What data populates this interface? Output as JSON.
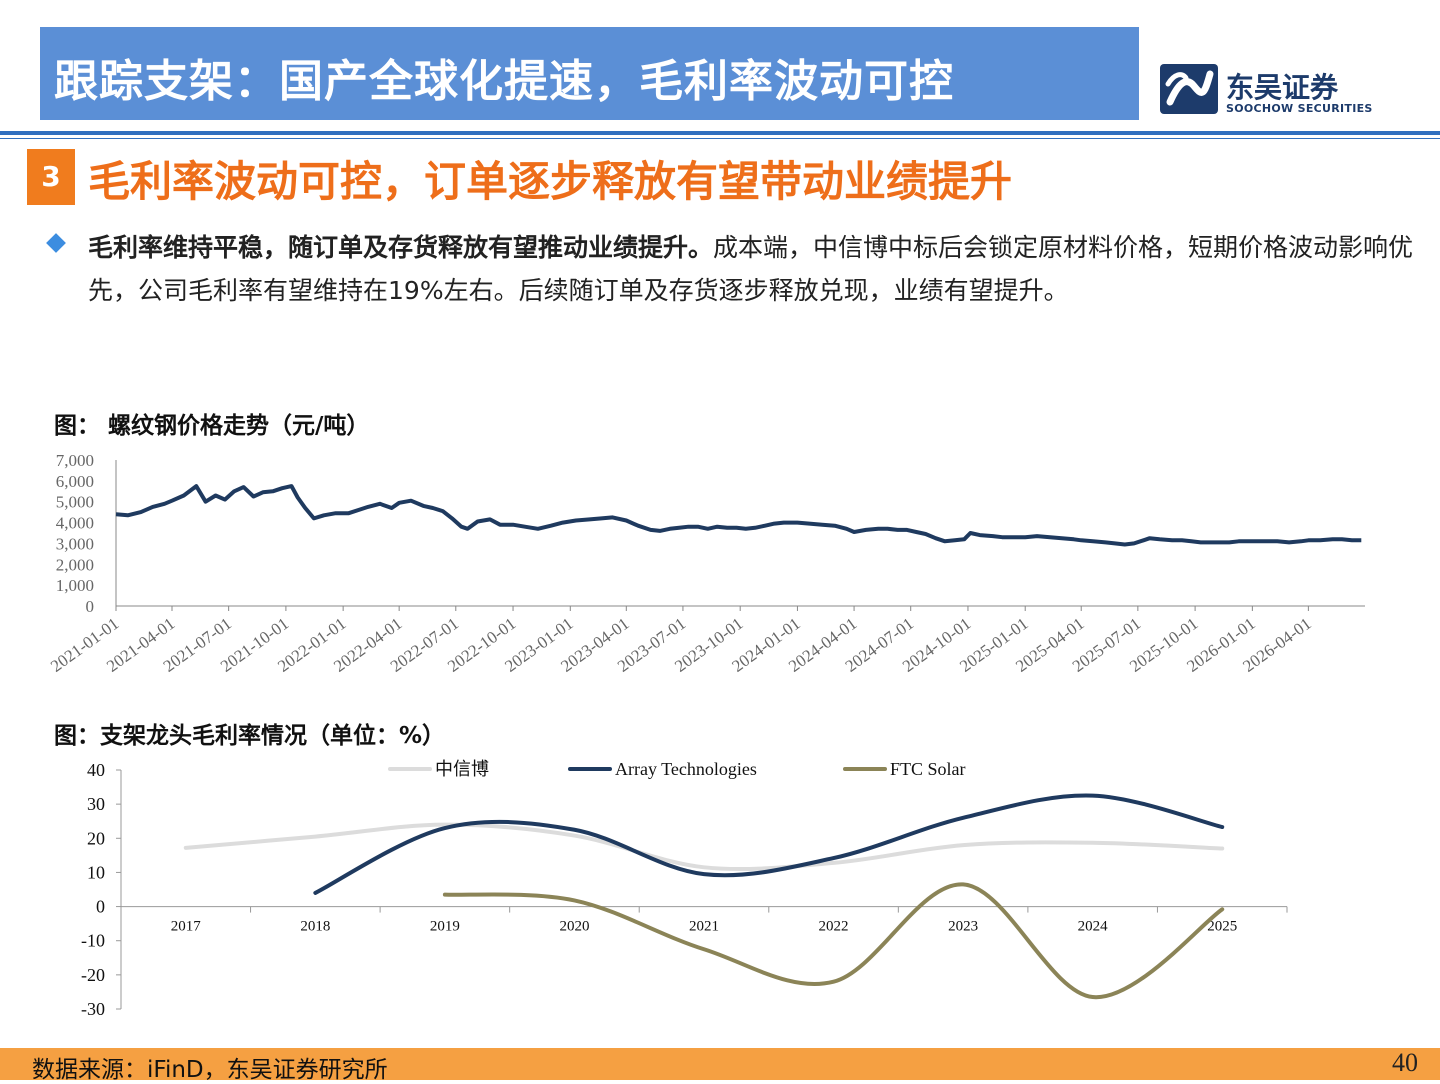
{
  "header": {
    "title": "跟踪支架：国产全球化提速，毛利率波动可控"
  },
  "logo": {
    "name_cn": "东吴证券",
    "name_en": "SOOCHOW SECURITIES"
  },
  "section": {
    "number": "3",
    "title": "毛利率波动可控，订单逐步释放有望带动业绩提升"
  },
  "paragraph": {
    "bold": "毛利率维持平稳，随订单及存货释放有望推动业绩提升。",
    "text": "成本端，中信博中标后会锁定原材料价格，短期价格波动影响优先，公司毛利率有望维持在19%左右。后续随订单及存货逐步释放兑现，业绩有望提升。"
  },
  "footer": {
    "source": "数据来源：iFinD，东吴证券研究所",
    "page": "40"
  },
  "colors": {
    "header_bg": "#5b8fd6",
    "accent_orange": "#ee6e1a",
    "navy": "#1f3a5f",
    "olive": "#8b8457",
    "light_gray": "#dcdcdc"
  },
  "chart_data": [
    {
      "type": "line",
      "title": "图：  螺纹钢价格走势（元/吨）",
      "ylim": [
        0,
        7000
      ],
      "yticks": [
        "0",
        "1,000",
        "2,000",
        "3,000",
        "4,000",
        "5,000",
        "6,000",
        "7,000"
      ],
      "xticks": [
        "2021-01-01",
        "2021-04-01",
        "2021-07-01",
        "2021-10-01",
        "2022-01-01",
        "2022-04-01",
        "2022-07-01",
        "2022-10-01",
        "2023-01-01",
        "2023-04-01",
        "2023-07-01",
        "2023-10-01",
        "2024-01-01",
        "2024-04-01",
        "2024-07-01",
        "2024-10-01",
        "2025-01-01",
        "2025-04-01",
        "2025-07-01",
        "2025-10-01",
        "2026-01-01",
        "2026-04-01"
      ],
      "series": [
        {
          "color": "#1f3a5f",
          "points": [
            [
              "2021-01-01",
              4400
            ],
            [
              "2021-01-20",
              4350
            ],
            [
              "2021-02-10",
              4500
            ],
            [
              "2021-03-01",
              4750
            ],
            [
              "2021-03-20",
              4900
            ],
            [
              "2021-04-01",
              5050
            ],
            [
              "2021-04-20",
              5300
            ],
            [
              "2021-05-10",
              5750
            ],
            [
              "2021-05-25",
              5000
            ],
            [
              "2021-06-10",
              5300
            ],
            [
              "2021-06-25",
              5100
            ],
            [
              "2021-07-10",
              5500
            ],
            [
              "2021-07-25",
              5700
            ],
            [
              "2021-08-10",
              5250
            ],
            [
              "2021-08-25",
              5450
            ],
            [
              "2021-09-10",
              5500
            ],
            [
              "2021-09-25",
              5650
            ],
            [
              "2021-10-10",
              5750
            ],
            [
              "2021-10-20",
              5200
            ],
            [
              "2021-11-01",
              4700
            ],
            [
              "2021-11-15",
              4200
            ],
            [
              "2021-12-01",
              4350
            ],
            [
              "2021-12-20",
              4450
            ],
            [
              "2022-01-10",
              4450
            ],
            [
              "2022-01-25",
              4600
            ],
            [
              "2022-02-10",
              4750
            ],
            [
              "2022-03-01",
              4900
            ],
            [
              "2022-03-20",
              4700
            ],
            [
              "2022-04-01",
              4950
            ],
            [
              "2022-04-20",
              5050
            ],
            [
              "2022-05-10",
              4800
            ],
            [
              "2022-05-25",
              4700
            ],
            [
              "2022-06-10",
              4550
            ],
            [
              "2022-06-25",
              4200
            ],
            [
              "2022-07-10",
              3800
            ],
            [
              "2022-07-20",
              3700
            ],
            [
              "2022-08-05",
              4050
            ],
            [
              "2022-08-25",
              4150
            ],
            [
              "2022-09-10",
              3900
            ],
            [
              "2022-10-01",
              3900
            ],
            [
              "2022-10-20",
              3800
            ],
            [
              "2022-11-10",
              3700
            ],
            [
              "2022-12-01",
              3850
            ],
            [
              "2022-12-20",
              4000
            ],
            [
              "2023-01-10",
              4100
            ],
            [
              "2023-02-01",
              4150
            ],
            [
              "2023-02-20",
              4200
            ],
            [
              "2023-03-10",
              4250
            ],
            [
              "2023-04-01",
              4100
            ],
            [
              "2023-04-20",
              3850
            ],
            [
              "2023-05-10",
              3650
            ],
            [
              "2023-05-25",
              3600
            ],
            [
              "2023-06-10",
              3700
            ],
            [
              "2023-06-25",
              3750
            ],
            [
              "2023-07-10",
              3800
            ],
            [
              "2023-07-25",
              3800
            ],
            [
              "2023-08-10",
              3700
            ],
            [
              "2023-08-25",
              3800
            ],
            [
              "2023-09-10",
              3750
            ],
            [
              "2023-09-25",
              3750
            ],
            [
              "2023-10-10",
              3700
            ],
            [
              "2023-10-25",
              3750
            ],
            [
              "2023-11-10",
              3850
            ],
            [
              "2023-11-25",
              3950
            ],
            [
              "2023-12-10",
              4000
            ],
            [
              "2024-01-01",
              4000
            ],
            [
              "2024-01-20",
              3950
            ],
            [
              "2024-02-10",
              3900
            ],
            [
              "2024-03-01",
              3850
            ],
            [
              "2024-03-20",
              3700
            ],
            [
              "2024-04-01",
              3550
            ],
            [
              "2024-04-20",
              3650
            ],
            [
              "2024-05-10",
              3700
            ],
            [
              "2024-05-25",
              3700
            ],
            [
              "2024-06-10",
              3650
            ],
            [
              "2024-06-25",
              3650
            ],
            [
              "2024-07-10",
              3550
            ],
            [
              "2024-07-25",
              3450
            ],
            [
              "2024-08-10",
              3250
            ],
            [
              "2024-08-25",
              3100
            ],
            [
              "2024-09-10",
              3150
            ],
            [
              "2024-09-25",
              3200
            ],
            [
              "2024-10-05",
              3500
            ],
            [
              "2024-10-20",
              3400
            ],
            [
              "2024-11-10",
              3350
            ],
            [
              "2024-11-25",
              3300
            ],
            [
              "2024-12-10",
              3300
            ],
            [
              "2025-01-01",
              3300
            ],
            [
              "2025-01-20",
              3350
            ],
            [
              "2025-02-10",
              3300
            ],
            [
              "2025-03-01",
              3250
            ],
            [
              "2025-03-20",
              3200
            ],
            [
              "2025-04-01",
              3150
            ],
            [
              "2025-04-20",
              3100
            ],
            [
              "2025-05-10",
              3050
            ],
            [
              "2025-05-25",
              3000
            ],
            [
              "2025-06-10",
              2950
            ],
            [
              "2025-06-25",
              3000
            ],
            [
              "2025-07-10",
              3150
            ],
            [
              "2025-07-20",
              3250
            ],
            [
              "2025-08-05",
              3200
            ],
            [
              "2025-08-25",
              3150
            ],
            [
              "2025-09-10",
              3150
            ],
            [
              "2025-09-25",
              3100
            ],
            [
              "2025-10-10",
              3050
            ],
            [
              "2025-10-25",
              3050
            ],
            [
              "2025-11-10",
              3050
            ],
            [
              "2025-11-25",
              3050
            ],
            [
              "2025-12-10",
              3100
            ],
            [
              "2026-01-01",
              3100
            ],
            [
              "2026-01-20",
              3100
            ],
            [
              "2026-02-10",
              3100
            ],
            [
              "2026-03-01",
              3050
            ],
            [
              "2026-03-20",
              3100
            ],
            [
              "2026-04-01",
              3150
            ],
            [
              "2026-04-20",
              3150
            ],
            [
              "2026-05-10",
              3200
            ],
            [
              "2026-05-25",
              3200
            ],
            [
              "2026-06-10",
              3150
            ],
            [
              "2026-06-25",
              3150
            ]
          ]
        }
      ]
    },
    {
      "type": "line",
      "title": "图：支架龙头毛利率情况（单位：%）",
      "ylim": [
        -30,
        40
      ],
      "yticks": [
        "-30",
        "-20",
        "-10",
        "0",
        "10",
        "20",
        "30",
        "40"
      ],
      "categories": [
        "2017",
        "2018",
        "2019",
        "2020",
        "2021",
        "2022",
        "2023",
        "2024",
        "2025"
      ],
      "legend": "top",
      "series": [
        {
          "name": "中信博",
          "color": "#dcdcdc",
          "values": [
            17.2,
            20.5,
            24.0,
            20.8,
            11.5,
            12.8,
            18.0,
            18.7,
            17.0
          ]
        },
        {
          "name": "Array Technologies",
          "color": "#1f3a5f",
          "values": [
            null,
            4.0,
            23.0,
            22.5,
            9.5,
            14.2,
            26.0,
            32.5,
            23.3
          ]
        },
        {
          "name": "FTC Solar",
          "color": "#8b8457",
          "values": [
            null,
            null,
            3.5,
            1.8,
            -12.5,
            -22.0,
            6.5,
            -26.5,
            -0.8
          ]
        }
      ]
    }
  ]
}
